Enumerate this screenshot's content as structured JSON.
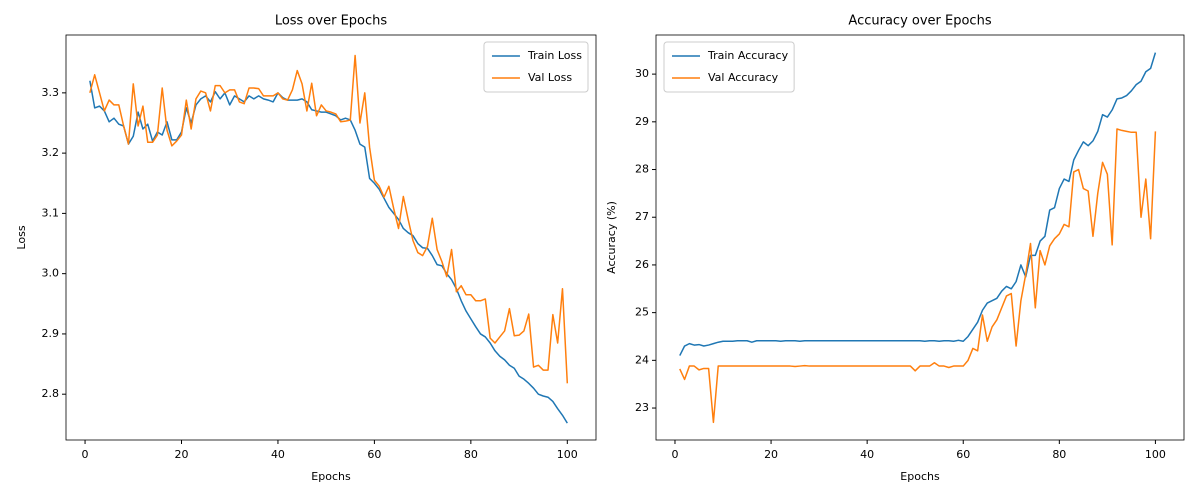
{
  "chart_data": [
    {
      "type": "line",
      "title": "Loss over Epochs",
      "xlabel": "Epochs",
      "ylabel": "Loss",
      "legend": "upper right",
      "x": [
        1,
        2,
        3,
        4,
        5,
        6,
        7,
        8,
        9,
        10,
        11,
        12,
        13,
        14,
        15,
        16,
        17,
        18,
        19,
        20,
        21,
        22,
        23,
        24,
        25,
        26,
        27,
        28,
        29,
        30,
        31,
        32,
        33,
        34,
        35,
        36,
        37,
        38,
        39,
        40,
        41,
        42,
        43,
        44,
        45,
        46,
        47,
        48,
        49,
        50,
        51,
        52,
        53,
        54,
        55,
        56,
        57,
        58,
        59,
        60,
        61,
        62,
        63,
        64,
        65,
        66,
        67,
        68,
        69,
        70,
        71,
        72,
        73,
        74,
        75,
        76,
        77,
        78,
        79,
        80,
        81,
        82,
        83,
        84,
        85,
        86,
        87,
        88,
        89,
        90,
        91,
        92,
        93,
        94,
        95,
        96,
        97,
        98,
        99,
        100
      ],
      "xlim": [
        -3.95,
        105.95
      ],
      "xticks": [
        0,
        20,
        40,
        60,
        80,
        100
      ],
      "ylim": [
        2.724,
        3.396
      ],
      "yticks": [
        2.8,
        2.9,
        {
          "value": 3,
          "label": "3.0"
        },
        3.1,
        3.2,
        3.3
      ],
      "series": [
        {
          "name": "Train Loss",
          "color": "#1f77b4",
          "values": [
            3.32,
            3.275,
            3.278,
            3.27,
            3.252,
            3.258,
            3.248,
            3.245,
            3.215,
            3.228,
            3.268,
            3.24,
            3.248,
            3.22,
            3.235,
            3.23,
            3.252,
            3.222,
            3.222,
            3.235,
            3.275,
            3.25,
            3.28,
            3.29,
            3.295,
            3.285,
            3.302,
            3.29,
            3.3,
            3.28,
            3.295,
            3.29,
            3.285,
            3.295,
            3.29,
            3.295,
            3.29,
            3.288,
            3.285,
            3.3,
            3.292,
            3.288,
            3.288,
            3.288,
            3.29,
            3.285,
            3.272,
            3.27,
            3.268,
            3.268,
            3.265,
            3.262,
            3.255,
            3.258,
            3.255,
            3.238,
            3.215,
            3.21,
            3.158,
            3.15,
            3.14,
            3.125,
            3.11,
            3.1,
            3.09,
            3.075,
            3.068,
            3.063,
            3.05,
            3.043,
            3.042,
            3.03,
            3.015,
            3.013,
            3.0,
            2.99,
            2.975,
            2.955,
            2.938,
            2.925,
            2.912,
            2.9,
            2.895,
            2.885,
            2.872,
            2.863,
            2.857,
            2.848,
            2.843,
            2.83,
            2.825,
            2.818,
            2.81,
            2.8,
            2.797,
            2.795,
            2.788,
            2.776,
            2.765,
            2.752
          ]
        },
        {
          "name": "Val Loss",
          "color": "#ff7f0e",
          "values": [
            3.3,
            3.33,
            3.3,
            3.27,
            3.288,
            3.28,
            3.28,
            3.245,
            3.215,
            3.315,
            3.245,
            3.278,
            3.218,
            3.218,
            3.23,
            3.308,
            3.238,
            3.212,
            3.22,
            3.23,
            3.288,
            3.24,
            3.29,
            3.303,
            3.3,
            3.27,
            3.312,
            3.312,
            3.3,
            3.305,
            3.305,
            3.285,
            3.282,
            3.308,
            3.308,
            3.307,
            3.295,
            3.295,
            3.295,
            3.3,
            3.29,
            3.288,
            3.305,
            3.337,
            3.315,
            3.27,
            3.316,
            3.262,
            3.28,
            3.27,
            3.268,
            3.265,
            3.252,
            3.253,
            3.255,
            3.362,
            3.25,
            3.3,
            3.21,
            3.155,
            3.145,
            3.127,
            3.145,
            3.108,
            3.075,
            3.128,
            3.09,
            3.055,
            3.035,
            3.03,
            3.045,
            3.092,
            3.04,
            3.02,
            2.995,
            3.04,
            2.97,
            2.98,
            2.965,
            2.965,
            2.955,
            2.955,
            2.958,
            2.893,
            2.885,
            2.895,
            2.905,
            2.942,
            2.897,
            2.898,
            2.905,
            2.933,
            2.845,
            2.848,
            2.84,
            2.84,
            2.932,
            2.885,
            2.975,
            2.818
          ]
        }
      ]
    },
    {
      "type": "line",
      "title": "Accuracy over Epochs",
      "xlabel": "Epochs",
      "ylabel": "Accuracy (%)",
      "legend": "upper left",
      "x": [
        1,
        2,
        3,
        4,
        5,
        6,
        7,
        8,
        9,
        10,
        11,
        12,
        13,
        14,
        15,
        16,
        17,
        18,
        19,
        20,
        21,
        22,
        23,
        24,
        25,
        26,
        27,
        28,
        29,
        30,
        31,
        32,
        33,
        34,
        35,
        36,
        37,
        38,
        39,
        40,
        41,
        42,
        43,
        44,
        45,
        46,
        47,
        48,
        49,
        50,
        51,
        52,
        53,
        54,
        55,
        56,
        57,
        58,
        59,
        60,
        61,
        62,
        63,
        64,
        65,
        66,
        67,
        68,
        69,
        70,
        71,
        72,
        73,
        74,
        75,
        76,
        77,
        78,
        79,
        80,
        81,
        82,
        83,
        84,
        85,
        86,
        87,
        88,
        89,
        90,
        91,
        92,
        93,
        94,
        95,
        96,
        97,
        98,
        99,
        100
      ],
      "xlim": [
        -3.95,
        105.95
      ],
      "xticks": [
        0,
        20,
        40,
        60,
        80,
        100
      ],
      "ylim": [
        22.33,
        30.82
      ],
      "yticks": [
        23,
        24,
        25,
        26,
        27,
        28,
        29,
        30
      ],
      "series": [
        {
          "name": "Train Accuracy",
          "color": "#1f77b4",
          "values": [
            24.1,
            24.3,
            24.35,
            24.32,
            24.33,
            24.3,
            24.32,
            24.35,
            24.38,
            24.4,
            24.4,
            24.4,
            24.41,
            24.41,
            24.41,
            24.38,
            24.41,
            24.41,
            24.41,
            24.41,
            24.41,
            24.4,
            24.41,
            24.41,
            24.41,
            24.4,
            24.41,
            24.41,
            24.41,
            24.41,
            24.41,
            24.41,
            24.41,
            24.41,
            24.41,
            24.41,
            24.41,
            24.41,
            24.41,
            24.41,
            24.41,
            24.41,
            24.41,
            24.41,
            24.41,
            24.41,
            24.41,
            24.41,
            24.41,
            24.41,
            24.41,
            24.4,
            24.41,
            24.41,
            24.4,
            24.41,
            24.41,
            24.4,
            24.42,
            24.4,
            24.5,
            24.65,
            24.8,
            25.05,
            25.2,
            25.25,
            25.3,
            25.45,
            25.55,
            25.5,
            25.65,
            26.0,
            25.75,
            26.2,
            26.2,
            26.5,
            26.6,
            27.15,
            27.2,
            27.6,
            27.8,
            27.75,
            28.2,
            28.4,
            28.58,
            28.5,
            28.6,
            28.8,
            29.15,
            29.1,
            29.25,
            29.48,
            29.5,
            29.55,
            29.65,
            29.78,
            29.85,
            30.05,
            30.12,
            30.45
          ]
        },
        {
          "name": "Val Accuracy",
          "color": "#ff7f0e",
          "values": [
            23.82,
            23.6,
            23.88,
            23.88,
            23.8,
            23.83,
            23.83,
            22.7,
            23.88,
            23.88,
            23.88,
            23.88,
            23.88,
            23.88,
            23.88,
            23.88,
            23.88,
            23.88,
            23.88,
            23.88,
            23.88,
            23.88,
            23.88,
            23.88,
            23.87,
            23.88,
            23.89,
            23.88,
            23.88,
            23.88,
            23.88,
            23.88,
            23.88,
            23.88,
            23.88,
            23.88,
            23.88,
            23.88,
            23.88,
            23.88,
            23.88,
            23.88,
            23.88,
            23.88,
            23.88,
            23.88,
            23.88,
            23.88,
            23.88,
            23.78,
            23.88,
            23.88,
            23.88,
            23.95,
            23.88,
            23.88,
            23.85,
            23.88,
            23.88,
            23.88,
            24.0,
            24.25,
            24.2,
            24.95,
            24.4,
            24.7,
            24.85,
            25.1,
            25.35,
            25.4,
            24.3,
            25.25,
            25.8,
            26.45,
            25.1,
            26.3,
            26.0,
            26.4,
            26.55,
            26.65,
            26.85,
            26.8,
            27.95,
            28.0,
            27.6,
            27.55,
            26.6,
            27.5,
            28.15,
            27.9,
            26.42,
            28.85,
            28.82,
            28.8,
            28.78,
            28.78,
            27.0,
            27.8,
            26.55,
            28.8
          ]
        }
      ]
    }
  ]
}
